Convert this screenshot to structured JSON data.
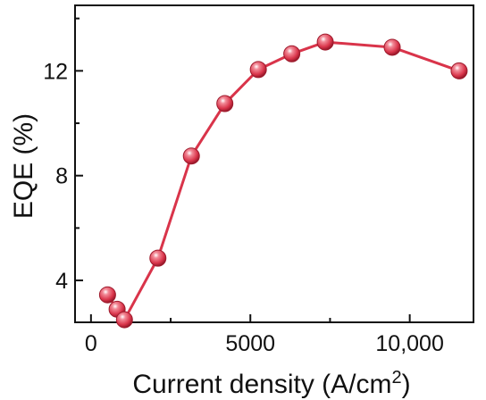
{
  "chart_data": {
    "type": "line",
    "title": "",
    "xlabel": "Current density (A/cm",
    "xlabel_superscript": "2",
    "xlabel_close": ")",
    "ylabel": "EQE (%)",
    "xlim": [
      -500,
      12000
    ],
    "ylim": [
      2.4,
      14.5
    ],
    "xticks": [
      {
        "value": 0,
        "label": "0"
      },
      {
        "value": 5000,
        "label": "5000"
      },
      {
        "value": 10000,
        "label": "10,000"
      }
    ],
    "yticks": [
      {
        "value": 4,
        "label": "4"
      },
      {
        "value": 8,
        "label": "8"
      },
      {
        "value": 12,
        "label": "12"
      }
    ],
    "grid": false,
    "legend": "none",
    "series": [
      {
        "color": "#d9344a",
        "marker": "sphere",
        "x": [
          520,
          820,
          1050,
          2100,
          3150,
          4200,
          5250,
          6300,
          7350,
          9450,
          11550
        ],
        "y": [
          3.45,
          2.9,
          2.5,
          4.85,
          8.75,
          10.75,
          12.05,
          12.65,
          13.1,
          12.9,
          12.0
        ]
      }
    ]
  }
}
